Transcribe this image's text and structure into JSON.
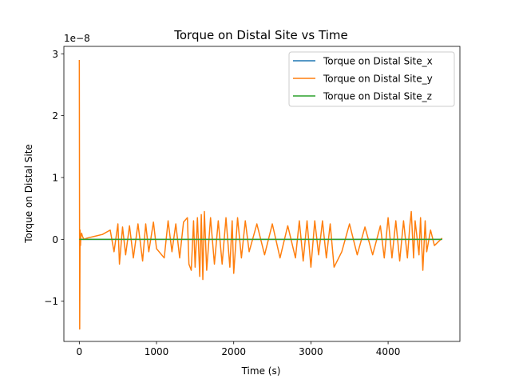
{
  "chart_data": {
    "type": "line",
    "title": "Torque on Distal Site vs Time",
    "xlabel": "Time (s)",
    "ylabel": "Torque on Distal Site",
    "offset_label": "1e−8",
    "xlim": [
      -200,
      4930
    ],
    "ylim": [
      -1.65,
      3.12
    ],
    "xticks": [
      0,
      1000,
      2000,
      3000,
      4000
    ],
    "xtick_labels": [
      "0",
      "1000",
      "2000",
      "3000",
      "4000"
    ],
    "yticks": [
      -1,
      0,
      1,
      2,
      3
    ],
    "ytick_labels": [
      "−1",
      "0",
      "1",
      "2",
      "3"
    ],
    "y_unit_scale": "1e-8",
    "grid": false,
    "legend_position": "top-right",
    "x_end": 4700,
    "series": [
      {
        "name": "Torque on Distal Site_x",
        "color": "#1f77b4",
        "x": [
          0,
          4700
        ],
        "y": [
          0,
          0
        ]
      },
      {
        "name": "Torque on Distal Site_y",
        "color": "#ff7f0e",
        "x": [
          0,
          5,
          10,
          15,
          20,
          30,
          40,
          60,
          100,
          200,
          300,
          400,
          450,
          500,
          520,
          560,
          600,
          650,
          700,
          760,
          820,
          860,
          900,
          960,
          1000,
          1100,
          1150,
          1200,
          1250,
          1300,
          1350,
          1400,
          1420,
          1450,
          1480,
          1500,
          1530,
          1560,
          1580,
          1600,
          1620,
          1650,
          1700,
          1750,
          1800,
          1850,
          1900,
          1950,
          1980,
          2000,
          2050,
          2100,
          2150,
          2200,
          2300,
          2400,
          2500,
          2600,
          2700,
          2800,
          2850,
          2900,
          2950,
          3000,
          3050,
          3100,
          3150,
          3200,
          3250,
          3300,
          3400,
          3500,
          3600,
          3700,
          3800,
          3900,
          3950,
          4000,
          4050,
          4100,
          4150,
          4200,
          4250,
          4280,
          4300,
          4330,
          4350,
          4400,
          4420,
          4450,
          4480,
          4500,
          4550,
          4600,
          4700
        ],
        "y": [
          2.9,
          -1.45,
          0.15,
          -0.1,
          0.05,
          0.1,
          0.05,
          0.0,
          0.02,
          0.05,
          0.08,
          0.15,
          -0.2,
          0.25,
          -0.4,
          0.2,
          -0.25,
          0.22,
          -0.3,
          0.25,
          -0.35,
          0.25,
          -0.2,
          0.28,
          -0.15,
          -0.3,
          0.3,
          -0.2,
          0.25,
          -0.3,
          0.28,
          0.35,
          -0.4,
          -0.5,
          0.3,
          -0.45,
          0.35,
          -0.6,
          0.4,
          -0.65,
          0.45,
          -0.5,
          0.35,
          -0.4,
          0.3,
          -0.4,
          0.35,
          -0.45,
          0.3,
          -0.55,
          0.35,
          -0.3,
          0.3,
          -0.2,
          0.25,
          -0.25,
          0.25,
          -0.3,
          0.22,
          -0.3,
          0.3,
          -0.35,
          0.3,
          -0.45,
          0.3,
          -0.25,
          0.3,
          -0.3,
          0.25,
          -0.45,
          -0.2,
          0.25,
          -0.25,
          0.2,
          -0.25,
          0.22,
          -0.3,
          0.35,
          -0.3,
          0.3,
          -0.35,
          0.3,
          -0.3,
          0.2,
          0.45,
          -0.3,
          0.3,
          -0.25,
          0.35,
          -0.5,
          0.3,
          -0.2,
          0.15,
          -0.1,
          0.02
        ]
      },
      {
        "name": "Torque on Distal Site_z",
        "color": "#2ca02c",
        "x": [
          0,
          4700
        ],
        "y": [
          0,
          0
        ]
      }
    ]
  }
}
